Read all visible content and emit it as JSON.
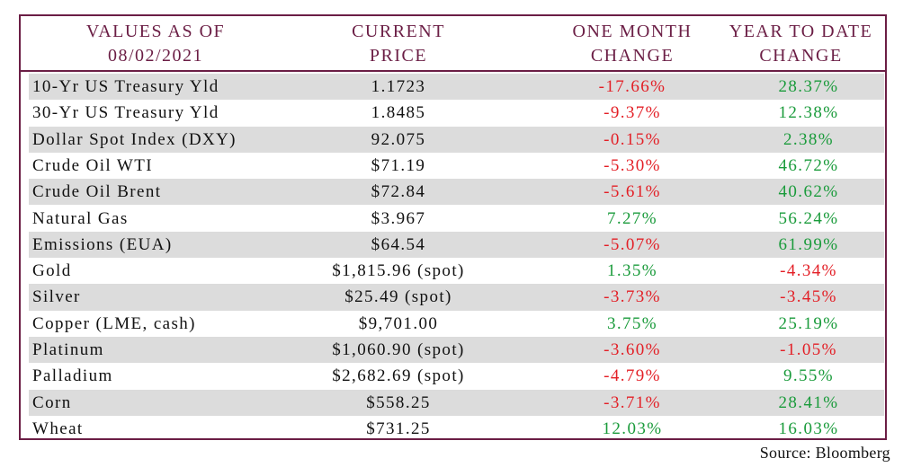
{
  "headers": {
    "col1": [
      "VALUES AS OF",
      "08/02/2021"
    ],
    "col2": [
      "CURRENT",
      "PRICE"
    ],
    "col3": [
      "ONE MONTH",
      "CHANGE"
    ],
    "col4": [
      "YEAR TO DATE",
      "CHANGE"
    ]
  },
  "rows": [
    {
      "name": "10-Yr US Treasury Yld",
      "price": "1.1723",
      "month": "-17.66%",
      "ytd": "28.37%"
    },
    {
      "name": "30-Yr US Treasury Yld",
      "price": "1.8485",
      "month": "-9.37%",
      "ytd": "12.38%"
    },
    {
      "name": "Dollar Spot Index (DXY)",
      "price": "92.075",
      "month": "-0.15%",
      "ytd": "2.38%"
    },
    {
      "name": "Crude Oil WTI",
      "price": "$71.19",
      "month": "-5.30%",
      "ytd": "46.72%"
    },
    {
      "name": "Crude Oil Brent",
      "price": "$72.84",
      "month": "-5.61%",
      "ytd": "40.62%"
    },
    {
      "name": "Natural Gas",
      "price": "$3.967",
      "month": "7.27%",
      "ytd": "56.24%"
    },
    {
      "name": "Emissions (EUA)",
      "price": "$64.54",
      "month": "-5.07%",
      "ytd": "61.99%"
    },
    {
      "name": "Gold",
      "price": "$1,815.96 (spot)",
      "month": "1.35%",
      "ytd": "-4.34%"
    },
    {
      "name": "Silver",
      "price": "$25.49 (spot)",
      "month": "-3.73%",
      "ytd": "-3.45%"
    },
    {
      "name": "Copper (LME, cash)",
      "price": "$9,701.00",
      "month": "3.75%",
      "ytd": "25.19%"
    },
    {
      "name": "Platinum",
      "price": "$1,060.90 (spot)",
      "month": "-3.60%",
      "ytd": "-1.05%"
    },
    {
      "name": "Palladium",
      "price": "$2,682.69 (spot)",
      "month": "-4.79%",
      "ytd": "9.55%"
    },
    {
      "name": "Corn",
      "price": "$558.25",
      "month": "-3.71%",
      "ytd": "28.41%"
    },
    {
      "name": "Wheat",
      "price": "$731.25",
      "month": "12.03%",
      "ytd": "16.03%"
    }
  ],
  "colors": {
    "header_text": "#6b1e45",
    "border": "#6b1e45",
    "negative": "#e31f26",
    "positive": "#1a9b3b",
    "shade": "#dcdcdc"
  },
  "source": "Source: Bloomberg"
}
